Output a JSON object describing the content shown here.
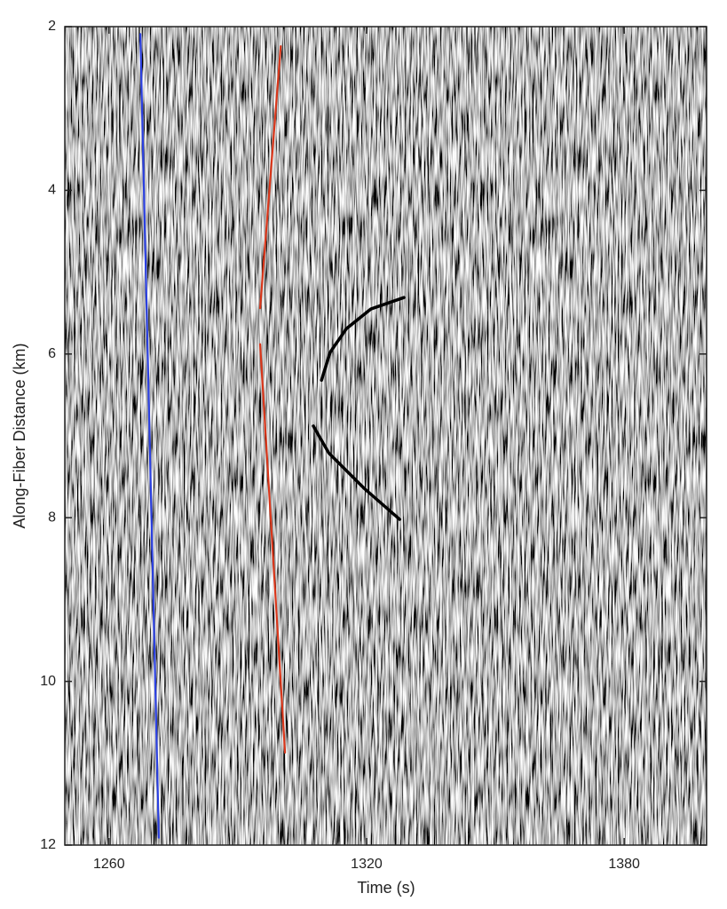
{
  "chart_data": {
    "type": "line",
    "xlabel": "Time (s)",
    "ylabel": "Along-Fiber Distance (km)",
    "xlim": [
      1249.7,
      1399.2
    ],
    "xticks": [
      1260,
      1320,
      1380
    ],
    "ylim": [
      12,
      2
    ],
    "yticks": [
      2,
      4,
      6,
      8,
      10,
      12
    ],
    "series": [
      {
        "color": "#2a3fe0",
        "x": [
          1267.3,
          1271.6
        ],
        "values": [
          2.09,
          11.91
        ]
      },
      {
        "color": "#d9361a",
        "x": [
          1300.0,
          1295.2
        ],
        "values": [
          2.24,
          5.44
        ]
      },
      {
        "color": "#d9361a",
        "x": [
          1295.2,
          1301.0
        ],
        "values": [
          5.88,
          10.87
        ]
      },
      {
        "color": "#000000",
        "x": [
          1328.7,
          1321.0,
          1315.3,
          1311.5,
          1309.5
        ],
        "values": [
          5.31,
          5.45,
          5.69,
          5.98,
          6.32
        ]
      },
      {
        "color": "#000000",
        "x": [
          1307.6,
          1311.2,
          1319.4,
          1327.7
        ],
        "values": [
          6.88,
          7.21,
          7.64,
          8.02
        ]
      }
    ]
  }
}
